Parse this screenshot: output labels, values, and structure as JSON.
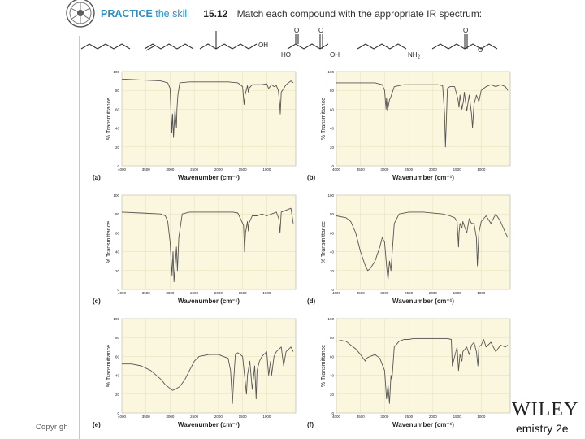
{
  "header": {
    "practice": "PRACTICE",
    "practice_sub": "the skill",
    "problem_number": "15.12",
    "problem_text": "Match each compound with the appropriate IR spectrum:"
  },
  "structures": {
    "oh_label": "OH",
    "ho_label": "HO",
    "oh2_label": "OH",
    "nh2_label": "NH",
    "nh2_sub": "2",
    "o_label_1": "O",
    "o_label_2": "O",
    "o_label_3": "O",
    "o_label_4": "O"
  },
  "footer": {
    "copyright": "Copyrigh",
    "publisher": "WILEY",
    "edition": "emistry 2e"
  },
  "chart_data": [
    {
      "type": "line",
      "panel": "(a)",
      "xlabel": "Wavenumber (cm⁻¹)",
      "ylabel": "% Transmittance",
      "xlim": [
        4000,
        400
      ],
      "ylim": [
        0,
        100
      ],
      "xticks": [
        "4000",
        "3500",
        "3000",
        "2500",
        "2000",
        "1500",
        "1000"
      ],
      "yticks": [
        "100",
        "80",
        "60",
        "40",
        "20",
        "0"
      ],
      "x": [
        4000,
        3600,
        3200,
        3050,
        3000,
        2965,
        2950,
        2930,
        2900,
        2870,
        2860,
        2840,
        2800,
        2600,
        2200,
        1800,
        1600,
        1500,
        1470,
        1460,
        1450,
        1400,
        1380,
        1370,
        1300,
        1200,
        1100,
        1000,
        960,
        900,
        850,
        800,
        760,
        730,
        720,
        700,
        600,
        500,
        450
      ],
      "y": [
        92,
        91,
        90,
        88,
        82,
        35,
        55,
        30,
        60,
        40,
        60,
        75,
        88,
        89,
        89,
        89,
        88,
        84,
        65,
        70,
        75,
        85,
        78,
        82,
        86,
        86,
        86,
        87,
        82,
        86,
        84,
        85,
        80,
        65,
        55,
        78,
        86,
        90,
        88
      ]
    },
    {
      "type": "line",
      "panel": "(b)",
      "xlabel": "Wavenumber (cm⁻¹)",
      "ylabel": "% Transmittance",
      "xlim": [
        4000,
        400
      ],
      "ylim": [
        0,
        100
      ],
      "xticks": [
        "4000",
        "3500",
        "3000",
        "2500",
        "2000",
        "1500",
        "1000"
      ],
      "yticks": [
        "100",
        "80",
        "60",
        "40",
        "20",
        "0"
      ],
      "x": [
        4000,
        3600,
        3200,
        3050,
        3000,
        2970,
        2960,
        2940,
        2900,
        2880,
        2800,
        2600,
        2200,
        1900,
        1800,
        1760,
        1740,
        1720,
        1700,
        1650,
        1550,
        1480,
        1460,
        1440,
        1400,
        1370,
        1350,
        1300,
        1250,
        1200,
        1180,
        1150,
        1100,
        1050,
        1000,
        950,
        900,
        800,
        700,
        600,
        500,
        450
      ],
      "y": [
        88,
        88,
        88,
        86,
        80,
        60,
        72,
        58,
        70,
        72,
        84,
        86,
        86,
        86,
        85,
        55,
        20,
        50,
        82,
        84,
        84,
        70,
        62,
        75,
        60,
        68,
        78,
        58,
        75,
        55,
        40,
        65,
        75,
        68,
        80,
        82,
        84,
        86,
        84,
        86,
        84,
        80
      ]
    },
    {
      "type": "line",
      "panel": "(c)",
      "xlabel": "Wavenumber (cm⁻¹)",
      "ylabel": "% Transmittance",
      "xlim": [
        4000,
        400
      ],
      "ylim": [
        0,
        100
      ],
      "xticks": [
        "4000",
        "3500",
        "3000",
        "2500",
        "2000",
        "1500",
        "1000"
      ],
      "yticks": [
        "100",
        "80",
        "60",
        "40",
        "20",
        "0"
      ],
      "x": [
        4000,
        3600,
        3200,
        3100,
        3050,
        3000,
        2960,
        2940,
        2920,
        2890,
        2870,
        2850,
        2820,
        2750,
        2600,
        2200,
        1800,
        1700,
        1600,
        1480,
        1460,
        1440,
        1400,
        1380,
        1370,
        1300,
        1200,
        1100,
        1000,
        900,
        800,
        750,
        725,
        700,
        600,
        500,
        450
      ],
      "y": [
        82,
        81,
        80,
        78,
        72,
        50,
        15,
        40,
        8,
        30,
        45,
        20,
        55,
        80,
        82,
        82,
        82,
        82,
        81,
        68,
        40,
        60,
        72,
        62,
        70,
        78,
        78,
        80,
        78,
        80,
        82,
        75,
        60,
        82,
        84,
        86,
        70
      ]
    },
    {
      "type": "line",
      "panel": "(d)",
      "xlabel": "Wavenumber (cm⁻¹)",
      "ylabel": "% Transmittance",
      "xlim": [
        4000,
        400
      ],
      "ylim": [
        0,
        100
      ],
      "xticks": [
        "4000",
        "3500",
        "3000",
        "2500",
        "2000",
        "1500",
        "1000"
      ],
      "yticks": [
        "100",
        "80",
        "60",
        "40",
        "20",
        "0"
      ],
      "x": [
        4000,
        3800,
        3700,
        3600,
        3500,
        3400,
        3350,
        3300,
        3200,
        3100,
        3050,
        3000,
        2960,
        2930,
        2900,
        2870,
        2850,
        2800,
        2700,
        2500,
        2200,
        1800,
        1650,
        1550,
        1500,
        1470,
        1460,
        1440,
        1400,
        1380,
        1300,
        1250,
        1200,
        1150,
        1100,
        1080,
        1050,
        1000,
        950,
        900,
        800,
        700,
        600,
        500,
        450
      ],
      "y": [
        78,
        76,
        72,
        60,
        40,
        25,
        20,
        22,
        30,
        45,
        55,
        50,
        25,
        10,
        30,
        20,
        35,
        70,
        80,
        82,
        82,
        80,
        78,
        76,
        72,
        45,
        60,
        70,
        65,
        72,
        60,
        75,
        70,
        70,
        55,
        25,
        60,
        72,
        75,
        78,
        70,
        80,
        72,
        60,
        55
      ]
    },
    {
      "type": "line",
      "panel": "(e)",
      "xlabel": "Wavenumber (cm⁻¹)",
      "ylabel": "% Transmittance",
      "xlim": [
        4000,
        400
      ],
      "ylim": [
        0,
        100
      ],
      "xticks": [
        "4000",
        "3500",
        "3000",
        "2500",
        "2000",
        "1500",
        "1000"
      ],
      "yticks": [
        "100",
        "80",
        "60",
        "40",
        "20",
        "0"
      ],
      "x": [
        4000,
        3800,
        3600,
        3400,
        3200,
        3100,
        3000,
        2950,
        2900,
        2800,
        2700,
        2600,
        2500,
        2400,
        2200,
        2000,
        1900,
        1800,
        1750,
        1710,
        1690,
        1650,
        1600,
        1500,
        1440,
        1420,
        1400,
        1350,
        1300,
        1250,
        1220,
        1200,
        1150,
        1100,
        1000,
        960,
        920,
        900,
        850,
        800,
        700,
        650,
        600,
        500,
        450
      ],
      "y": [
        52,
        52,
        50,
        45,
        36,
        30,
        26,
        24,
        25,
        28,
        35,
        45,
        55,
        60,
        62,
        62,
        60,
        58,
        45,
        10,
        30,
        62,
        64,
        60,
        30,
        20,
        40,
        55,
        25,
        50,
        15,
        45,
        55,
        60,
        65,
        40,
        55,
        40,
        60,
        65,
        70,
        50,
        65,
        70,
        65
      ]
    },
    {
      "type": "line",
      "panel": "(f)",
      "xlabel": "Wavenumber (cm⁻¹)",
      "ylabel": "% Transmittance",
      "xlim": [
        4000,
        400
      ],
      "ylim": [
        0,
        100
      ],
      "xticks": [
        "4000",
        "3500",
        "3000",
        "2500",
        "2000",
        "1500",
        "1000"
      ],
      "yticks": [
        "100",
        "80",
        "60",
        "40",
        "20",
        "0"
      ],
      "x": [
        4000,
        3900,
        3800,
        3700,
        3600,
        3500,
        3400,
        3380,
        3300,
        3200,
        3100,
        3000,
        2960,
        2930,
        2900,
        2870,
        2850,
        2800,
        2700,
        2600,
        2500,
        2400,
        2300,
        2200,
        2000,
        1800,
        1700,
        1620,
        1600,
        1500,
        1470,
        1440,
        1400,
        1380,
        1300,
        1250,
        1200,
        1150,
        1100,
        1070,
        1050,
        1000,
        950,
        900,
        800,
        700,
        600,
        500,
        450
      ],
      "y": [
        76,
        77,
        76,
        72,
        68,
        62,
        55,
        58,
        60,
        62,
        58,
        45,
        15,
        30,
        10,
        40,
        35,
        70,
        76,
        78,
        78,
        79,
        79,
        79,
        79,
        79,
        79,
        78,
        50,
        70,
        45,
        62,
        55,
        65,
        70,
        62,
        72,
        75,
        65,
        50,
        70,
        72,
        78,
        70,
        75,
        65,
        72,
        70,
        72
      ]
    }
  ]
}
